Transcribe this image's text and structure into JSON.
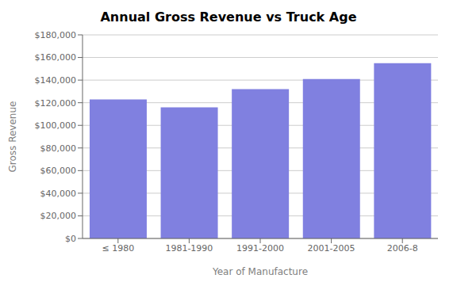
{
  "chart_data": {
    "type": "bar",
    "title": "Annual Gross Revenue vs Truck Age",
    "categories": [
      "≤ 1980",
      "1981-1990",
      "1991-2000",
      "2001-2005",
      "2006-8"
    ],
    "values": [
      123000,
      116000,
      132000,
      141000,
      155000
    ],
    "color": "#8080e0",
    "xlabel": "Year of Manufacture",
    "ylabel": "Gross Revenue",
    "ylim": [
      0,
      180000
    ],
    "yticks": [
      {
        "value": 0,
        "label": "$0"
      },
      {
        "value": 20000,
        "label": "$20,000"
      },
      {
        "value": 40000,
        "label": "$40,000"
      },
      {
        "value": 60000,
        "label": "$60,000"
      },
      {
        "value": 80000,
        "label": "$80,000"
      },
      {
        "value": 100000,
        "label": "$100,000"
      },
      {
        "value": 120000,
        "label": "$120,000"
      },
      {
        "value": 140000,
        "label": "$140,000"
      },
      {
        "value": 160000,
        "label": "$160,000"
      },
      {
        "value": 180000,
        "label": "$180,000"
      }
    ],
    "grid": true
  }
}
